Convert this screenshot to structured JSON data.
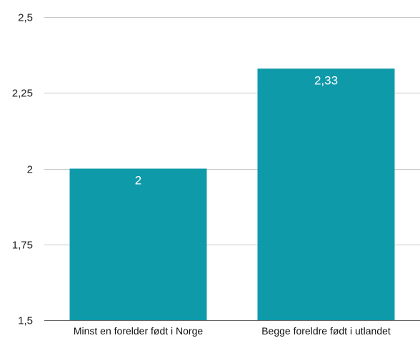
{
  "chart_data": {
    "type": "bar",
    "categories": [
      "Minst en forelder født i Norge",
      "Begge foreldre født i utlandet"
    ],
    "values": [
      2,
      2.33
    ],
    "data_labels": [
      "2",
      "2,33"
    ],
    "title": "",
    "xlabel": "",
    "ylabel": "",
    "ylim": [
      1.5,
      2.5
    ],
    "yticks": [
      1.5,
      1.75,
      2,
      2.25,
      2.5
    ],
    "ytick_labels": [
      "1,5",
      "1,75",
      "2",
      "2,25",
      "2,5"
    ],
    "grid": true,
    "legend": "none",
    "bar_color": "#0f9aaa"
  }
}
